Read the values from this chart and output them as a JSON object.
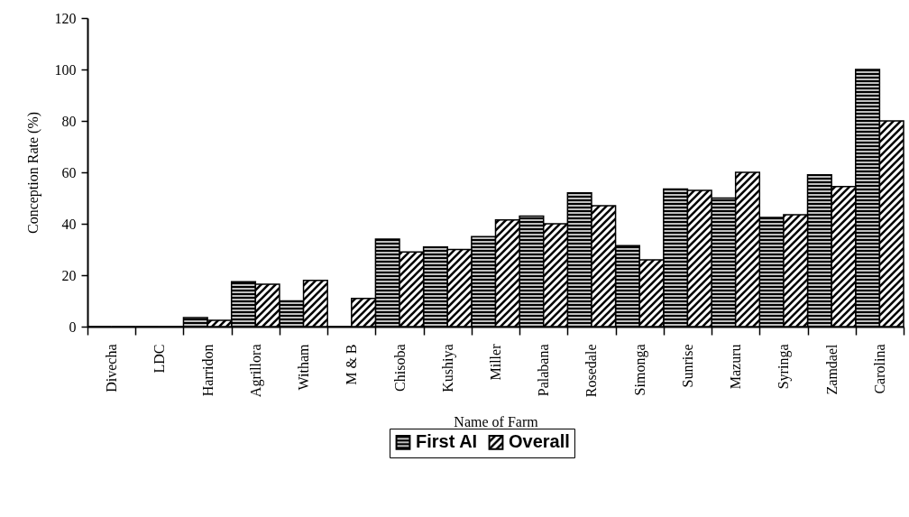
{
  "chart_data": {
    "type": "bar",
    "xlabel": "Name of Farm",
    "ylabel": "Conception Rate (%)",
    "categories": [
      "Divecha",
      "LDC",
      "Harridon",
      "Agrillora",
      "Witham",
      "M & B",
      "Chisoba",
      "Kushiya",
      "Miller",
      "Palabana",
      "Rosedale",
      "Simonga",
      "Sunrise",
      "Mazuru",
      "Syringa",
      "Zamdael",
      "Carolina"
    ],
    "series": [
      {
        "name": "First AI",
        "color": "#000000",
        "values": [
          0,
          0,
          3.5,
          17.5,
          10,
          0,
          34,
          31,
          35,
          43,
          52,
          31.5,
          53.5,
          50,
          42.5,
          59,
          100
        ]
      },
      {
        "name": "Overall",
        "color": "#000000",
        "values": [
          0,
          0,
          2.5,
          16.5,
          18,
          11,
          29,
          30,
          41.5,
          40,
          47,
          26,
          53,
          60,
          43.5,
          54.5,
          80
        ]
      }
    ],
    "ylim": [
      0,
      120
    ],
    "yticks": [
      0,
      20,
      40,
      60,
      80,
      100,
      120
    ],
    "grid": false,
    "legend": "bottom"
  }
}
